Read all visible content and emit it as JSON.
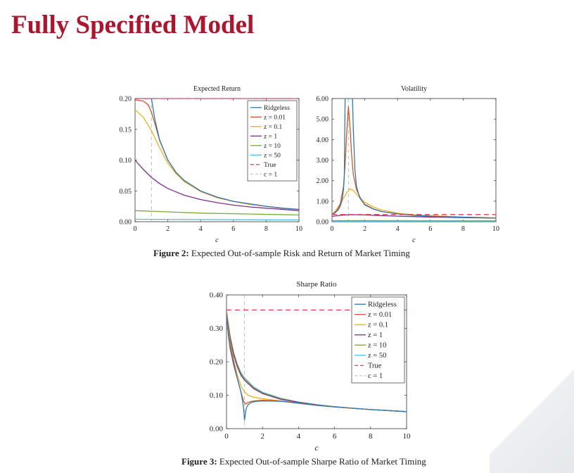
{
  "title": "Fully Specified Model",
  "figures": [
    {
      "label": "Figure 2:",
      "text": "Expected Out-of-sample Risk and Return of Market Timing"
    },
    {
      "label": "Figure 3:",
      "text": "Expected Out-of-sample Sharpe Ratio of Market Timing"
    }
  ],
  "chart_data": [
    {
      "id": "expected-return",
      "type": "line",
      "title": "Expected Return",
      "xlabel": "c",
      "ylabel": "",
      "xlim": [
        0,
        10
      ],
      "ylim": [
        0,
        0.2
      ],
      "xticks": [
        "0",
        "2",
        "4",
        "6",
        "8",
        "10"
      ],
      "yticks": [
        "0.00",
        "0.05",
        "0.10",
        "0.15",
        "0.20"
      ],
      "legend_position": "top-right",
      "legend": [
        "Ridgeless",
        "z = 0.01",
        "z = 0.1",
        "z = 1",
        "z = 10",
        "z = 50",
        "True",
        "c = 1"
      ],
      "true_value": 0.2,
      "c_marker": 1,
      "series": [
        {
          "name": "Ridgeless",
          "color": "#2e7bb6",
          "style": "solid",
          "x": [
            0,
            0.5,
            1,
            1.2,
            1.5,
            2,
            2.5,
            3,
            4,
            5,
            6,
            7,
            8,
            9,
            10
          ],
          "values": [
            0.2,
            0.2,
            0.2,
            0.167,
            0.133,
            0.1,
            0.08,
            0.067,
            0.05,
            0.04,
            0.033,
            0.029,
            0.025,
            0.022,
            0.02
          ]
        },
        {
          "name": "z = 0.01",
          "color": "#d9541e",
          "style": "solid",
          "x": [
            0,
            0.5,
            0.8,
            1,
            1.2,
            1.5,
            2,
            2.5,
            3,
            4,
            5,
            6,
            7,
            8,
            9,
            10
          ],
          "values": [
            0.198,
            0.196,
            0.19,
            0.178,
            0.16,
            0.132,
            0.1,
            0.08,
            0.067,
            0.05,
            0.04,
            0.033,
            0.029,
            0.025,
            0.022,
            0.02
          ]
        },
        {
          "name": "z = 0.1",
          "color": "#edb120",
          "style": "solid",
          "x": [
            0,
            0.5,
            1,
            1.5,
            2,
            2.5,
            3,
            4,
            5,
            6,
            7,
            8,
            9,
            10
          ],
          "values": [
            0.182,
            0.17,
            0.148,
            0.12,
            0.095,
            0.078,
            0.065,
            0.049,
            0.039,
            0.033,
            0.028,
            0.025,
            0.022,
            0.02
          ]
        },
        {
          "name": "z = 1",
          "color": "#7e2f8e",
          "style": "solid",
          "x": [
            0,
            0.5,
            1,
            1.5,
            2,
            3,
            4,
            5,
            6,
            7,
            8,
            9,
            10
          ],
          "values": [
            0.1,
            0.085,
            0.072,
            0.062,
            0.054,
            0.043,
            0.036,
            0.031,
            0.027,
            0.024,
            0.022,
            0.02,
            0.018
          ]
        },
        {
          "name": "z = 10",
          "color": "#77ac30",
          "style": "solid",
          "x": [
            0,
            2,
            4,
            6,
            8,
            10
          ],
          "values": [
            0.018,
            0.016,
            0.014,
            0.013,
            0.012,
            0.011
          ]
        },
        {
          "name": "z = 50",
          "color": "#4dbeee",
          "style": "solid",
          "x": [
            0,
            10
          ],
          "values": [
            0.004,
            0.003
          ]
        }
      ]
    },
    {
      "id": "volatility",
      "type": "line",
      "title": "Volatility",
      "xlabel": "c",
      "ylabel": "",
      "xlim": [
        0,
        10
      ],
      "ylim": [
        0,
        6
      ],
      "xticks": [
        "0",
        "2",
        "4",
        "6",
        "8",
        "10"
      ],
      "yticks": [
        "0.00",
        "1.00",
        "2.00",
        "3.00",
        "4.00",
        "5.00",
        "6.00"
      ],
      "true_value": 0.35,
      "c_marker": 1,
      "series": [
        {
          "name": "Ridgeless",
          "color": "#2e7bb6",
          "style": "solid",
          "x": [
            0,
            0.2,
            0.4,
            0.5,
            0.6,
            0.7,
            0.75,
            0.8,
            1.25,
            1.3,
            1.4,
            1.5,
            1.7,
            2,
            2.5,
            3,
            4,
            5,
            6,
            8,
            10
          ],
          "values": [
            0.35,
            0.44,
            0.6,
            0.75,
            1.0,
            1.55,
            2.2,
            6.0,
            6.0,
            4.5,
            2.5,
            1.7,
            1.15,
            0.82,
            0.62,
            0.5,
            0.38,
            0.31,
            0.27,
            0.22,
            0.18
          ]
        },
        {
          "name": "z = 0.01",
          "color": "#d9541e",
          "style": "solid",
          "x": [
            0,
            0.3,
            0.5,
            0.7,
            0.8,
            0.9,
            1,
            1.1,
            1.2,
            1.3,
            1.5,
            1.8,
            2,
            2.5,
            3,
            4,
            5,
            6,
            8,
            10
          ],
          "values": [
            0.35,
            0.55,
            0.85,
            1.7,
            2.8,
            4.4,
            5.6,
            4.6,
            3.2,
            2.3,
            1.55,
            1.05,
            0.85,
            0.63,
            0.5,
            0.38,
            0.31,
            0.27,
            0.22,
            0.18
          ]
        },
        {
          "name": "z = 0.1",
          "color": "#edb120",
          "style": "solid",
          "x": [
            0,
            0.3,
            0.6,
            0.9,
            1.1,
            1.3,
            1.6,
            2,
            2.5,
            3,
            4,
            5,
            6,
            8,
            10
          ],
          "values": [
            0.33,
            0.62,
            1.0,
            1.42,
            1.6,
            1.52,
            1.25,
            0.95,
            0.72,
            0.58,
            0.42,
            0.34,
            0.29,
            0.23,
            0.19
          ]
        },
        {
          "name": "z = 1",
          "color": "#7e2f8e",
          "style": "solid",
          "x": [
            0,
            0.5,
            1,
            1.5,
            2,
            3,
            4,
            6,
            8,
            10
          ],
          "values": [
            0.26,
            0.31,
            0.34,
            0.34,
            0.33,
            0.3,
            0.27,
            0.23,
            0.2,
            0.18
          ]
        },
        {
          "name": "z = 10",
          "color": "#77ac30",
          "style": "solid",
          "x": [
            0,
            2,
            4,
            6,
            8,
            10
          ],
          "values": [
            0.05,
            0.055,
            0.05,
            0.048,
            0.045,
            0.043
          ]
        },
        {
          "name": "z = 50",
          "color": "#4dbeee",
          "style": "solid",
          "x": [
            0,
            10
          ],
          "values": [
            0.012,
            0.012
          ]
        }
      ]
    },
    {
      "id": "sharpe-ratio",
      "type": "line",
      "title": "Sharpe Ratio",
      "xlabel": "c",
      "ylabel": "",
      "xlim": [
        0,
        10
      ],
      "ylim": [
        0,
        0.4
      ],
      "xticks": [
        "0",
        "2",
        "4",
        "6",
        "8",
        "10"
      ],
      "yticks": [
        "0.00",
        "0.10",
        "0.20",
        "0.30",
        "0.40"
      ],
      "legend_position": "top-right",
      "legend": [
        "Ridgeless",
        "z = 0.01",
        "z = 0.1",
        "z = 1",
        "z = 10",
        "z = 50",
        "True",
        "c = 1"
      ],
      "true_value": 0.355,
      "c_marker": 1,
      "series": [
        {
          "name": "Ridgeless",
          "color": "#2e7bb6",
          "style": "solid",
          "x": [
            0,
            0.1,
            0.2,
            0.4,
            0.6,
            0.8,
            0.9,
            0.95,
            1.0,
            1.05,
            1.1,
            1.2,
            1.4,
            1.7,
            2,
            3,
            4,
            5,
            6,
            7,
            8,
            9,
            10
          ],
          "values": [
            0.34,
            0.28,
            0.24,
            0.19,
            0.15,
            0.11,
            0.08,
            0.06,
            0.025,
            0.045,
            0.062,
            0.072,
            0.079,
            0.082,
            0.083,
            0.082,
            0.076,
            0.07,
            0.065,
            0.061,
            0.057,
            0.054,
            0.051
          ]
        },
        {
          "name": "z = 0.01",
          "color": "#d9541e",
          "style": "solid",
          "x": [
            0,
            0.2,
            0.4,
            0.6,
            0.8,
            0.95,
            1.05,
            1.2,
            1.4,
            1.7,
            2,
            3,
            4,
            5,
            6,
            7,
            8,
            9,
            10
          ],
          "values": [
            0.35,
            0.25,
            0.2,
            0.15,
            0.11,
            0.082,
            0.074,
            0.078,
            0.082,
            0.084,
            0.085,
            0.083,
            0.076,
            0.07,
            0.065,
            0.061,
            0.057,
            0.054,
            0.051
          ]
        },
        {
          "name": "z = 0.1",
          "color": "#edb120",
          "style": "solid",
          "x": [
            0,
            0.2,
            0.4,
            0.6,
            0.8,
            1,
            1.2,
            1.5,
            2,
            3,
            4,
            5,
            6,
            7,
            8,
            9,
            10
          ],
          "values": [
            0.35,
            0.26,
            0.205,
            0.16,
            0.128,
            0.11,
            0.1,
            0.094,
            0.09,
            0.083,
            0.076,
            0.07,
            0.065,
            0.061,
            0.057,
            0.054,
            0.051
          ]
        },
        {
          "name": "z = 1",
          "color": "#7e2f8e",
          "style": "solid",
          "x": [
            0,
            0.2,
            0.4,
            0.6,
            0.8,
            1,
            1.5,
            2,
            3,
            4,
            5,
            6,
            7,
            8,
            9,
            10
          ],
          "values": [
            0.35,
            0.27,
            0.22,
            0.185,
            0.16,
            0.145,
            0.12,
            0.105,
            0.088,
            0.078,
            0.071,
            0.065,
            0.061,
            0.057,
            0.054,
            0.051
          ]
        },
        {
          "name": "z = 10",
          "color": "#77ac30",
          "style": "solid",
          "x": [
            0,
            0.2,
            0.4,
            0.6,
            0.8,
            1,
            1.5,
            2,
            3,
            4,
            5,
            6,
            7,
            8,
            9,
            10
          ],
          "values": [
            0.35,
            0.275,
            0.225,
            0.19,
            0.165,
            0.15,
            0.123,
            0.107,
            0.09,
            0.079,
            0.071,
            0.066,
            0.061,
            0.057,
            0.054,
            0.051
          ]
        },
        {
          "name": "z = 50",
          "color": "#4dbeee",
          "style": "solid",
          "x": [
            0,
            0.2,
            0.4,
            0.6,
            0.8,
            1,
            1.5,
            2,
            3,
            4,
            5,
            6,
            7,
            8,
            9,
            10
          ],
          "values": [
            0.35,
            0.278,
            0.228,
            0.193,
            0.168,
            0.152,
            0.125,
            0.109,
            0.091,
            0.08,
            0.072,
            0.066,
            0.061,
            0.057,
            0.054,
            0.051
          ]
        }
      ]
    }
  ],
  "colors": {
    "title": "#b0142c",
    "true_line": "#e8384f",
    "c_marker_line": "#b8b8b8"
  }
}
